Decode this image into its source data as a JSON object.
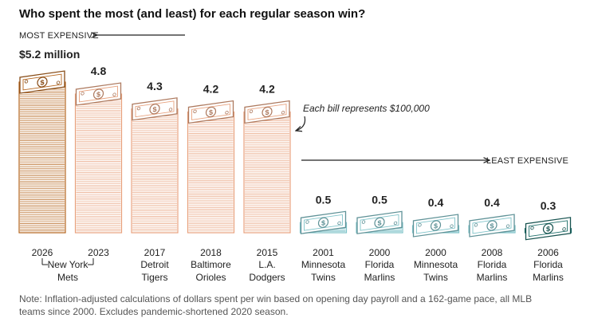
{
  "chart_data": {
    "type": "bar",
    "title": "Who spent the most (and least) for each regular season win?",
    "most_label": "MOST EXPENSIVE",
    "least_label": "LEAST EXPENSIVE",
    "annotation": "Each bill represents $100,000",
    "unit_prefix": "$",
    "unit_suffix": " million",
    "bill_value": 100000,
    "categories": [
      {
        "year": "2026",
        "team": [
          "New York",
          "Mets"
        ],
        "value": 5.2,
        "label": "$5.2 million",
        "color": "#b5651d"
      },
      {
        "year": "2023",
        "team": [
          "New York",
          "Mets"
        ],
        "value": 4.8,
        "label": "4.8",
        "color": "#e8a27e"
      },
      {
        "year": "2017",
        "team": [
          "Detroit",
          "Tigers"
        ],
        "value": 4.3,
        "label": "4.3",
        "color": "#e8a27e"
      },
      {
        "year": "2018",
        "team": [
          "Baltimore",
          "Orioles"
        ],
        "value": 4.2,
        "label": "4.2",
        "color": "#e8a27e"
      },
      {
        "year": "2015",
        "team": [
          "L.A.",
          "Dodgers"
        ],
        "value": 4.2,
        "label": "4.2",
        "color": "#e8a27e"
      },
      {
        "year": "2001",
        "team": [
          "Minnesota",
          "Twins"
        ],
        "value": 0.5,
        "label": "0.5",
        "color": "#7fc3c9"
      },
      {
        "year": "2000",
        "team": [
          "Florida",
          "Marlins"
        ],
        "value": 0.5,
        "label": "0.5",
        "color": "#7fc3c9"
      },
      {
        "year": "2000",
        "team": [
          "Minnesota",
          "Twins"
        ],
        "value": 0.4,
        "label": "0.4",
        "color": "#7fc3c9"
      },
      {
        "year": "2008",
        "team": [
          "Florida",
          "Marlins"
        ],
        "value": 0.4,
        "label": "0.4",
        "color": "#7fc3c9"
      },
      {
        "year": "2006",
        "team": [
          "Florida",
          "Marlins"
        ],
        "value": 0.3,
        "label": "0.3",
        "color": "#1f6f6b"
      }
    ],
    "team_group": {
      "label": [
        "New York",
        "Mets"
      ],
      "span": [
        0,
        1
      ]
    },
    "note_lines": [
      "Note: Inflation-adjusted calculations of dollars spent per win based on opening day payroll and a 162-game pace, all MLB",
      "teams since 2000. Excludes pandemic-shortened 2020 season."
    ]
  }
}
